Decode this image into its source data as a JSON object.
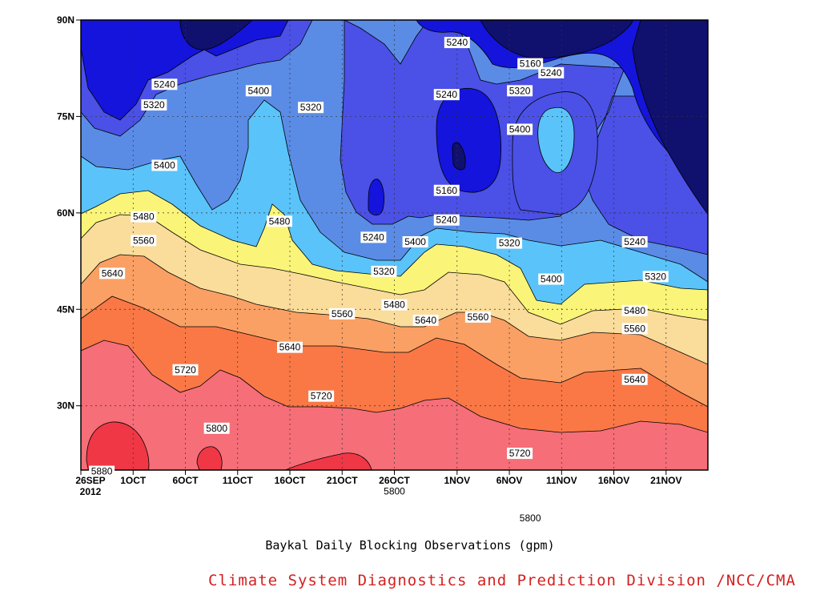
{
  "chart_data": {
    "type": "heatmap",
    "subtype": "filled-contour",
    "title": "Baykal Daily Blocking Observations (gpm)",
    "credit": "Climate System Diagnostics and Prediction Division /NCC/CMA",
    "x_axis": {
      "labels": [
        "26SEP",
        "1OCT",
        "6OCT",
        "11OCT",
        "16OCT",
        "21OCT",
        "26OCT",
        "1NOV",
        "6NOV",
        "11NOV",
        "16NOV",
        "21NOV"
      ],
      "year_label": "2012",
      "start_date": "2012-09-26",
      "end_date": "2012-11-25"
    },
    "y_axis": {
      "labels": [
        "90N",
        "75N",
        "60N",
        "45N",
        "30N"
      ],
      "values": [
        90,
        75,
        60,
        45,
        30
      ],
      "range": [
        20,
        90
      ]
    },
    "grid": true,
    "contour_levels": [
      5160,
      5240,
      5320,
      5400,
      5480,
      5560,
      5640,
      5720,
      5800,
      5880
    ],
    "colors": {
      "below_5160": "#10106e",
      "5160_5240": "#1414dc",
      "5240_5320": "#4b50e6",
      "5320_5400": "#5a8ce6",
      "5400_5480": "#5ac3fa",
      "5480_5560": "#faf578",
      "5560_5640": "#fadc9b",
      "5640_5720": "#faa064",
      "5720_5800": "#fa7846",
      "5800_5880": "#f56e78",
      "above_5880": "#f03746"
    },
    "contour_labels": [
      {
        "text": "5240",
        "date": "2012-11-01",
        "lat": 86.5
      },
      {
        "text": "5160",
        "date": "2012-11-08",
        "lat": 83.2
      },
      {
        "text": "5240",
        "date": "2012-11-10",
        "lat": 81.8
      },
      {
        "text": "5240",
        "date": "2012-10-04",
        "lat": 80.0
      },
      {
        "text": "5320",
        "date": "2012-10-03",
        "lat": 76.8
      },
      {
        "text": "5400",
        "date": "2012-10-13",
        "lat": 79.0
      },
      {
        "text": "5320",
        "date": "2012-10-18",
        "lat": 76.4
      },
      {
        "text": "5240",
        "date": "2012-10-31",
        "lat": 78.4
      },
      {
        "text": "5320",
        "date": "2012-11-07",
        "lat": 79.0
      },
      {
        "text": "5400",
        "date": "2012-11-07",
        "lat": 73.0
      },
      {
        "text": "5400",
        "date": "2012-10-04",
        "lat": 67.4
      },
      {
        "text": "5160",
        "date": "2012-10-31",
        "lat": 63.5
      },
      {
        "text": "5240",
        "date": "2012-10-31",
        "lat": 58.9
      },
      {
        "text": "5480",
        "date": "2012-10-02",
        "lat": 59.4
      },
      {
        "text": "5480",
        "date": "2012-10-15",
        "lat": 58.7
      },
      {
        "text": "5560",
        "date": "2012-10-02",
        "lat": 55.7
      },
      {
        "text": "5240",
        "date": "2012-10-24",
        "lat": 56.2
      },
      {
        "text": "5400",
        "date": "2012-10-28",
        "lat": 55.5
      },
      {
        "text": "5320",
        "date": "2012-11-06",
        "lat": 55.3
      },
      {
        "text": "5240",
        "date": "2012-11-18",
        "lat": 55.5
      },
      {
        "text": "5320",
        "date": "2012-10-25",
        "lat": 50.9
      },
      {
        "text": "5320",
        "date": "2012-11-20",
        "lat": 50.1
      },
      {
        "text": "5400",
        "date": "2012-11-10",
        "lat": 49.7
      },
      {
        "text": "5640",
        "date": "2012-09-29",
        "lat": 50.6
      },
      {
        "text": "5480",
        "date": "2012-10-26",
        "lat": 45.7
      },
      {
        "text": "5560",
        "date": "2012-10-21",
        "lat": 44.3
      },
      {
        "text": "5560",
        "date": "2012-11-03",
        "lat": 43.8
      },
      {
        "text": "5480",
        "date": "2012-11-18",
        "lat": 44.8
      },
      {
        "text": "5640",
        "date": "2012-10-29",
        "lat": 43.3
      },
      {
        "text": "5560",
        "date": "2012-11-18",
        "lat": 42.0
      },
      {
        "text": "5640",
        "date": "2012-10-16",
        "lat": 39.1
      },
      {
        "text": "5720",
        "date": "2012-10-06",
        "lat": 35.6
      },
      {
        "text": "5640",
        "date": "2012-11-18",
        "lat": 34.1
      },
      {
        "text": "5720",
        "date": "2012-10-19",
        "lat": 31.5
      },
      {
        "text": "5800",
        "date": "2012-10-09",
        "lat": 26.5
      },
      {
        "text": "5720",
        "date": "2012-11-07",
        "lat": 22.6
      },
      {
        "text": "5880",
        "date": "2012-09-28",
        "lat": 19.8
      },
      {
        "text": "5800",
        "date": "2012-10-26",
        "lat": 16.7
      },
      {
        "text": "5800",
        "date": "2012-11-08",
        "lat": 12.5
      }
    ]
  }
}
